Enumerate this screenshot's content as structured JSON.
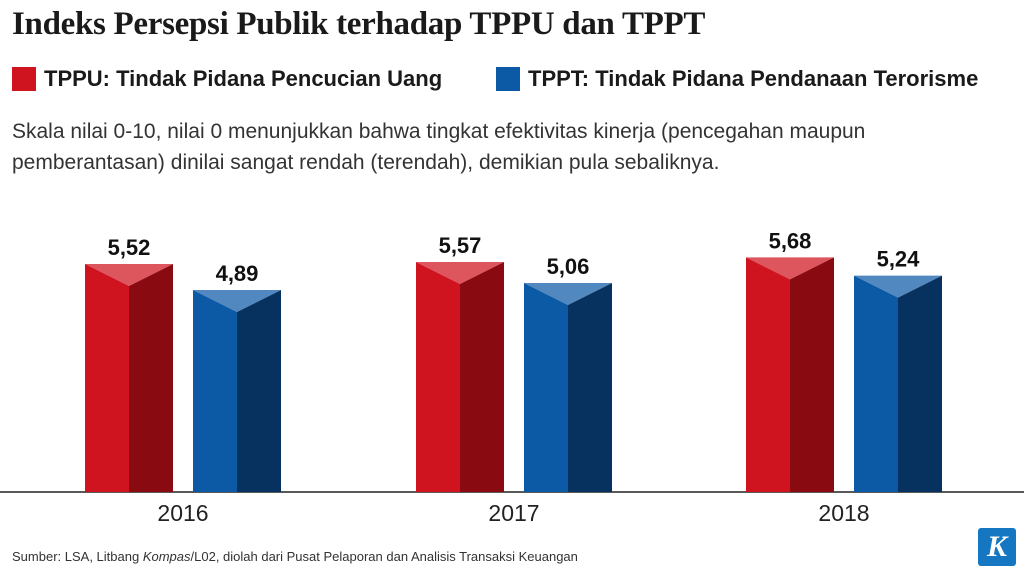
{
  "chart_data": {
    "type": "bar",
    "title": "Indeks Persepsi Publik terhadap TPPU dan TPPT",
    "subtitle": "Skala nilai 0-10, nilai 0 menunjukkan bahwa tingkat efektivitas kinerja (pencegahan maupun pemberantasan) dinilai sangat rendah (terendah), demikian pula sebaliknya.",
    "categories": [
      "2016",
      "2017",
      "2018"
    ],
    "series": [
      {
        "name": "TPPU: Tindak Pidana Pencucian Uang",
        "values": [
          5.52,
          5.57,
          5.68
        ],
        "labels": [
          "5,52",
          "5,57",
          "5,68"
        ],
        "color": "#d0141f",
        "shade": "#8a0a12"
      },
      {
        "name": "TPPT: Tindak Pidana Pendanaan Terorisme",
        "values": [
          4.89,
          5.06,
          5.24
        ],
        "labels": [
          "4,89",
          "5,06",
          "5,24"
        ],
        "color": "#0c5aa6",
        "shade": "#07315e"
      }
    ],
    "ylim": [
      0,
      10
    ],
    "grid": false,
    "legend_position": "top-left"
  },
  "source": {
    "prefix": "Sumber: LSA, Litbang ",
    "italic": "Kompas",
    "suffix": "/L02, diolah dari Pusat Pelaporan dan Analisis Transaksi Keuangan"
  },
  "logo": {
    "letter": "K",
    "color": "#1576c2"
  }
}
